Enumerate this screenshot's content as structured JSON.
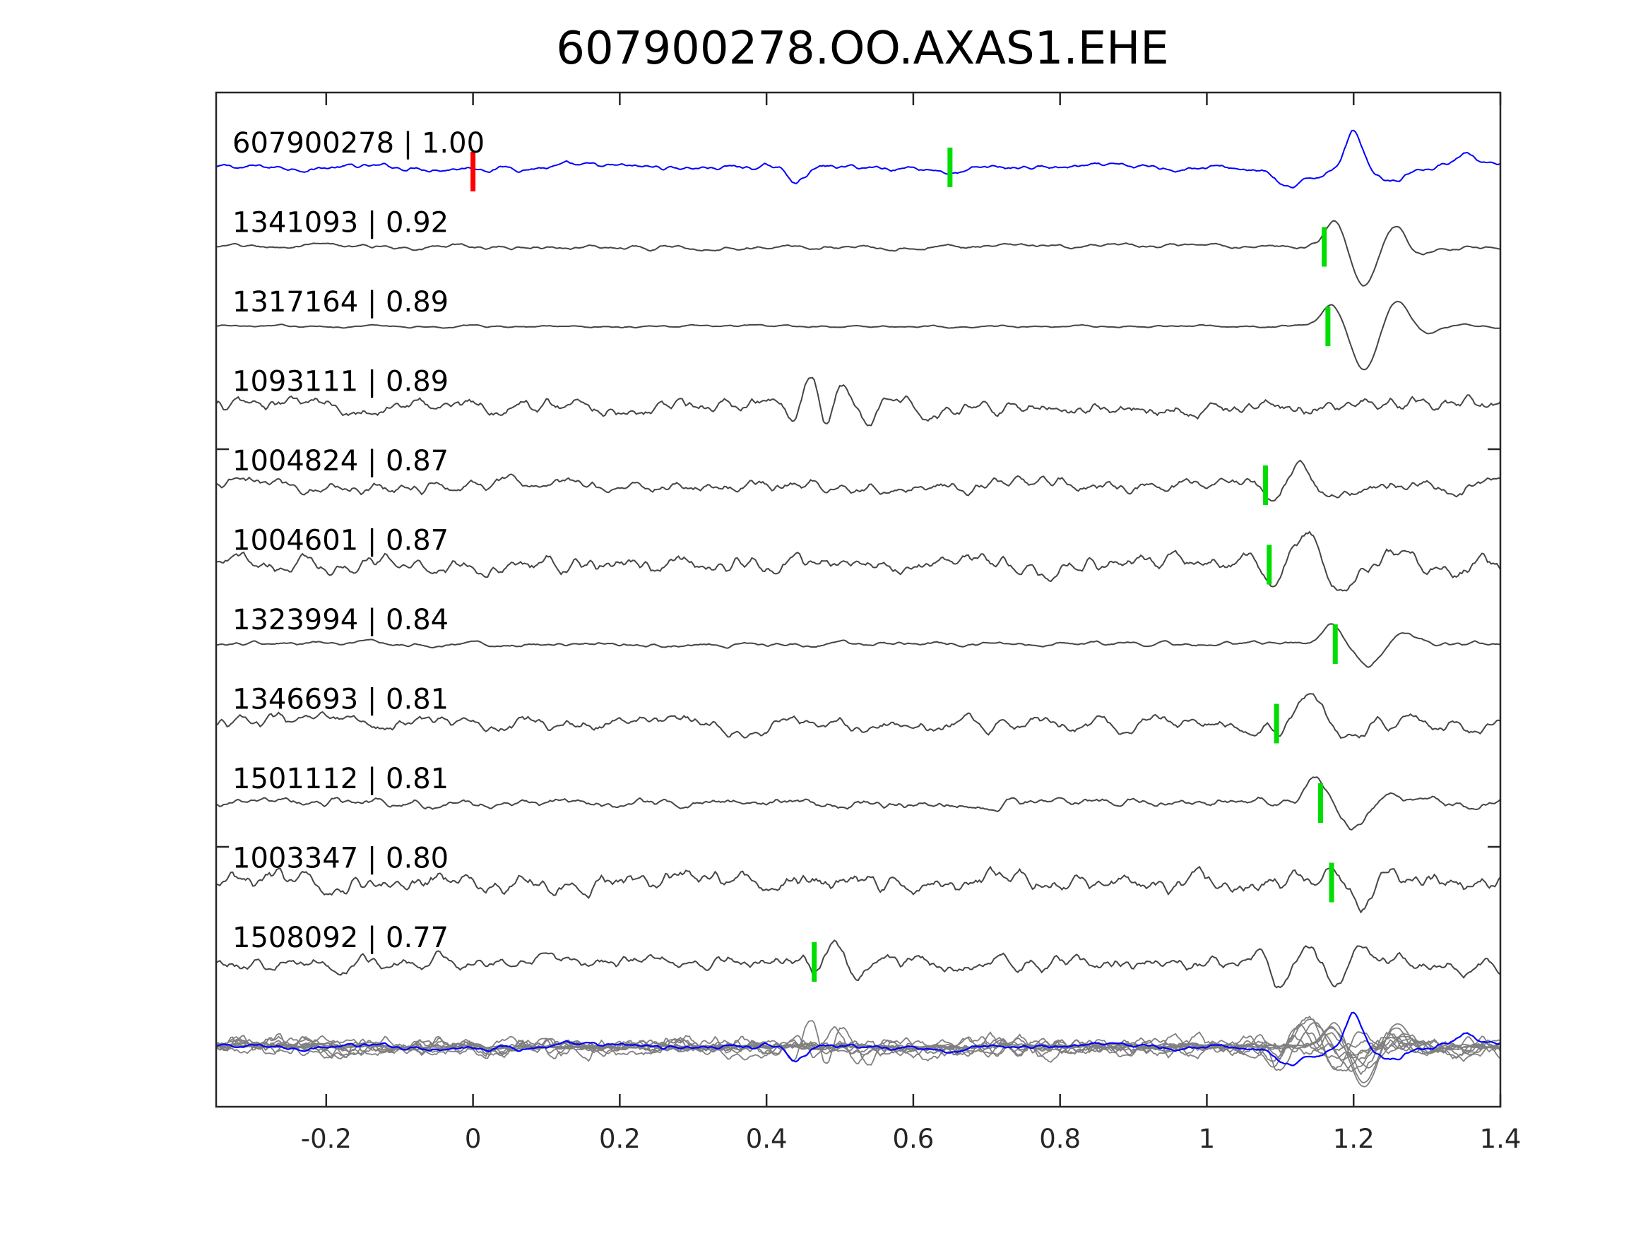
{
  "chart_data": {
    "type": "line",
    "title": "607900278.OO.AXAS1.EHE",
    "xlabel": "",
    "ylabel": "",
    "xlim": [
      -0.35,
      1.4
    ],
    "xticks": [
      -0.2,
      0,
      0.2,
      0.4,
      0.6,
      0.8,
      1,
      1.2,
      1.4
    ],
    "xtick_labels": [
      "-0.2",
      "0",
      "0.2",
      "0.4",
      "0.6",
      "0.8",
      "1",
      "1.2",
      "1.4"
    ],
    "grid": false,
    "legend": "none",
    "colors": {
      "template": "#0000ff",
      "trace": "#454545",
      "stack": "#808080",
      "origin_pick": "#ff0000",
      "phase_pick": "#00dd00",
      "axes": "#262626"
    },
    "traces": [
      {
        "label": "607900278 | 1.00",
        "id": "607900278",
        "cc": 1.0,
        "template": true,
        "origin_pick": 0.0,
        "phase_pick": 0.65,
        "features": [
          [
            0.44,
            -0.7,
            0.012
          ],
          [
            0.66,
            -0.3,
            0.02
          ],
          [
            1.08,
            0.5,
            0.015
          ],
          [
            1.11,
            -1.2,
            0.03
          ],
          [
            1.2,
            2.0,
            0.012
          ],
          [
            1.25,
            -0.6,
            0.02
          ],
          [
            1.35,
            0.8,
            0.015
          ]
        ],
        "noise": 0.2
      },
      {
        "label": "1341093 | 0.92",
        "id": "1341093",
        "cc": 0.92,
        "phase_pick": 1.16,
        "features": [
          [
            1.175,
            1.6,
            0.013
          ],
          [
            1.215,
            -2.2,
            0.016
          ],
          [
            1.255,
            1.3,
            0.016
          ],
          [
            1.29,
            -0.5,
            0.015
          ]
        ],
        "noise": 0.15
      },
      {
        "label": "1317164 | 0.89",
        "id": "1317164",
        "cc": 0.89,
        "phase_pick": 1.165,
        "features": [
          [
            1.17,
            1.2,
            0.013
          ],
          [
            1.215,
            -2.4,
            0.016
          ],
          [
            1.26,
            1.4,
            0.016
          ],
          [
            1.3,
            -0.4,
            0.016
          ]
        ],
        "noise": 0.08
      },
      {
        "label": "1093111 | 0.89",
        "id": "1093111",
        "cc": 0.89,
        "features": [
          [
            0.44,
            -1.5,
            0.01
          ],
          [
            0.46,
            2.0,
            0.01
          ],
          [
            0.48,
            -1.6,
            0.01
          ],
          [
            0.5,
            1.0,
            0.01
          ],
          [
            0.54,
            -0.9,
            0.012
          ],
          [
            0.58,
            0.7,
            0.012
          ]
        ],
        "noise": 0.55
      },
      {
        "label": "1004824 | 0.87",
        "id": "1004824",
        "cc": 0.87,
        "phase_pick": 1.08,
        "features": [
          [
            1.09,
            -1.2,
            0.012
          ],
          [
            1.12,
            1.1,
            0.015
          ],
          [
            1.16,
            -0.6,
            0.015
          ]
        ],
        "noise": 0.45
      },
      {
        "label": "1004601 | 0.87",
        "id": "1004601",
        "cc": 0.87,
        "phase_pick": 1.085,
        "features": [
          [
            1.09,
            -1.0,
            0.012
          ],
          [
            1.14,
            1.5,
            0.015
          ],
          [
            1.19,
            -1.2,
            0.017
          ],
          [
            1.24,
            0.6,
            0.017
          ]
        ],
        "noise": 0.55
      },
      {
        "label": "1323994 | 0.84",
        "id": "1323994",
        "cc": 0.84,
        "phase_pick": 1.175,
        "features": [
          [
            1.17,
            1.0,
            0.012
          ],
          [
            1.22,
            -1.3,
            0.015
          ],
          [
            1.27,
            0.7,
            0.015
          ]
        ],
        "noise": 0.15
      },
      {
        "label": "1346693 | 0.81",
        "id": "1346693",
        "cc": 0.81,
        "phase_pick": 1.095,
        "features": [
          [
            1.1,
            -0.6,
            0.012
          ],
          [
            1.14,
            1.6,
            0.016
          ],
          [
            1.19,
            -1.0,
            0.016
          ]
        ],
        "noise": 0.45
      },
      {
        "label": "1501112 | 0.81",
        "id": "1501112",
        "cc": 0.81,
        "phase_pick": 1.155,
        "features": [
          [
            1.15,
            1.2,
            0.014
          ],
          [
            1.2,
            -1.3,
            0.015
          ],
          [
            1.25,
            0.3,
            0.015
          ]
        ],
        "noise": 0.3
      },
      {
        "label": "1003347 | 0.80",
        "id": "1003347",
        "cc": 0.8,
        "phase_pick": 1.17,
        "features": [
          [
            1.17,
            0.9,
            0.012
          ],
          [
            1.21,
            -1.3,
            0.014
          ],
          [
            1.25,
            0.5,
            0.014
          ]
        ],
        "noise": 0.65
      },
      {
        "label": "1508092 | 0.77",
        "id": "1508092",
        "cc": 0.77,
        "phase_pick": 0.465,
        "features": [
          [
            0.47,
            -0.8,
            0.01
          ],
          [
            0.49,
            1.1,
            0.012
          ],
          [
            0.52,
            -0.7,
            0.012
          ],
          [
            1.07,
            1.0,
            0.015
          ],
          [
            1.1,
            -1.5,
            0.015
          ],
          [
            1.14,
            1.0,
            0.015
          ],
          [
            1.17,
            -0.9,
            0.015
          ],
          [
            1.21,
            0.7,
            0.015
          ]
        ],
        "noise": 0.5
      }
    ],
    "stack_row": true
  }
}
